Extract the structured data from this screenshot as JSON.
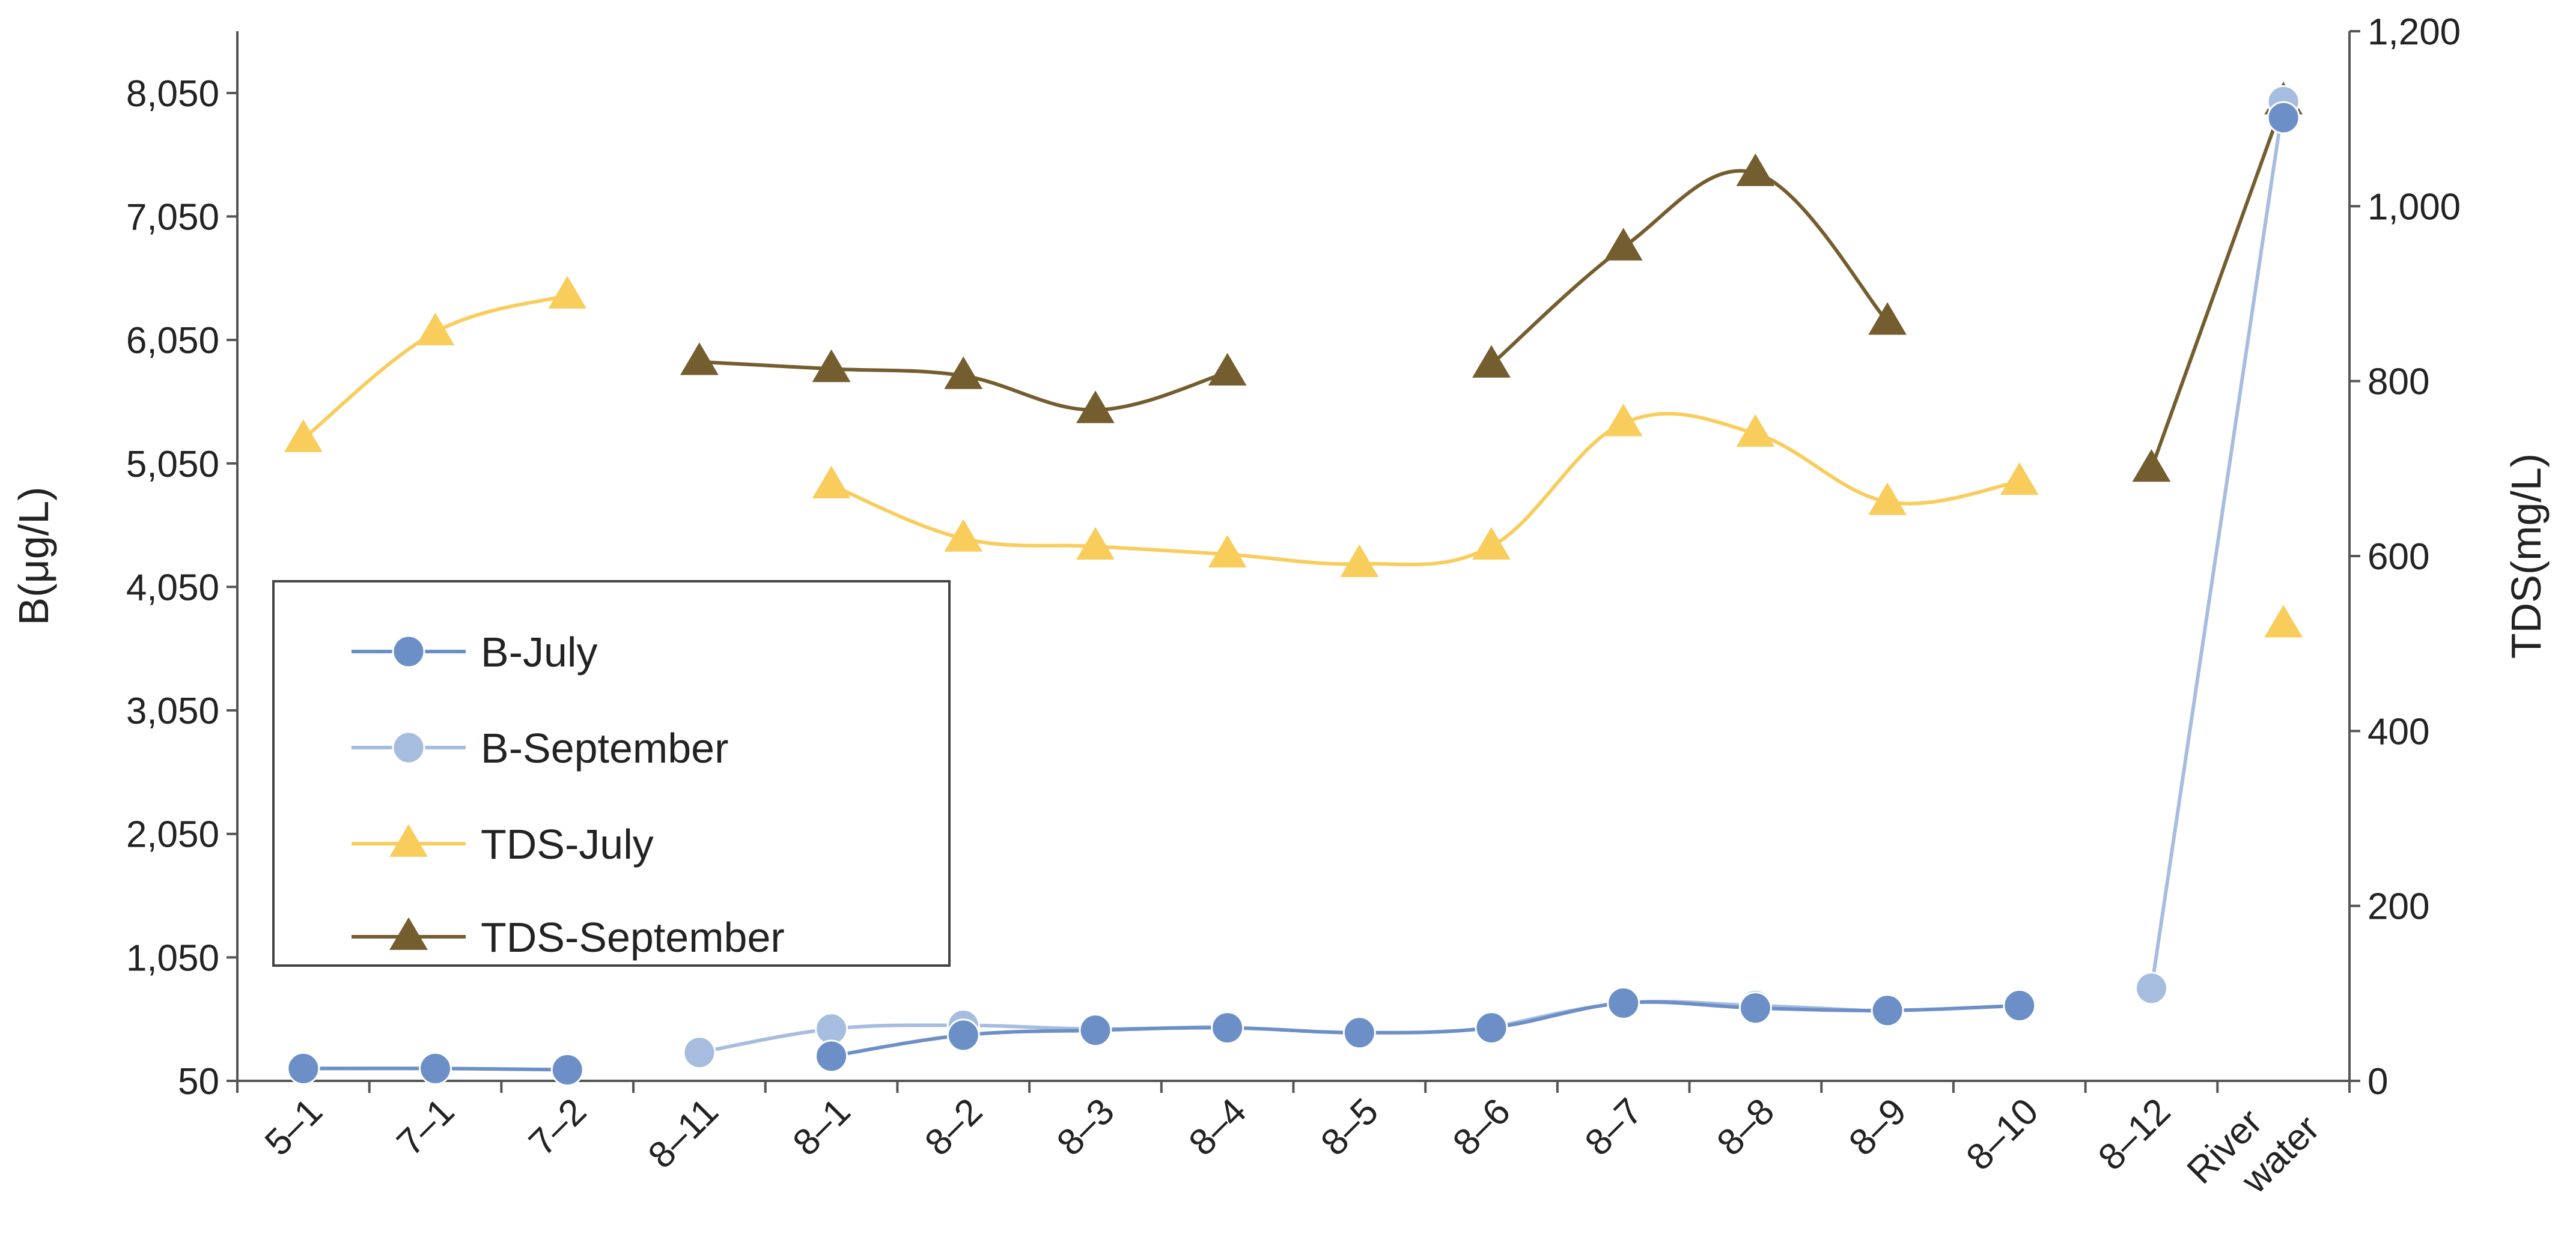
{
  "chart_data": {
    "type": "line",
    "categories": [
      "5–1",
      "7–1",
      "7–2",
      "8–11",
      "8–1",
      "8–2",
      "8–3",
      "8–4",
      "8–5",
      "8–6",
      "8–7",
      "8–8",
      "8–9",
      "8–10",
      "8–12",
      "River water"
    ],
    "ylabel": "B(μg/L)",
    "y2label": "TDS(mg/L)",
    "ylim": [
      50,
      8550
    ],
    "y2lim": [
      0,
      1200
    ],
    "yticks": [
      "50",
      "1,050",
      "2,050",
      "3,050",
      "4,050",
      "5,050",
      "6,050",
      "7,050",
      "8,050"
    ],
    "y2ticks": [
      "0",
      "200",
      "400",
      "600",
      "800",
      "1,000",
      "1,200"
    ],
    "legend_position": "left",
    "grid": false,
    "series": [
      {
        "name": "B-July",
        "axis": "left",
        "marker": "circle",
        "color": "#6d8fc7",
        "values": [
          150,
          150,
          140,
          null,
          250,
          420,
          460,
          480,
          440,
          480,
          680,
          640,
          620,
          660,
          null,
          7850
        ]
      },
      {
        "name": "B-September",
        "axis": "left",
        "marker": "circle",
        "color": "#a6bde0",
        "values": [
          null,
          null,
          null,
          280,
          470,
          500,
          470,
          490,
          null,
          480,
          680,
          660,
          610,
          null,
          800,
          7980
        ]
      },
      {
        "name": "TDS-July",
        "axis": "right",
        "marker": "triangle",
        "color": "#f8cd5c",
        "values": [
          734,
          856,
          898,
          null,
          681,
          620,
          611,
          602,
          591,
          611,
          752,
          740,
          662,
          685,
          null,
          522
        ]
      },
      {
        "name": "TDS-September",
        "axis": "right",
        "marker": "triangle",
        "color": "#745d2e",
        "values": [
          null,
          null,
          null,
          822,
          814,
          806,
          767,
          810,
          null,
          819,
          953,
          1038,
          868,
          null,
          700,
          1120
        ]
      }
    ]
  }
}
